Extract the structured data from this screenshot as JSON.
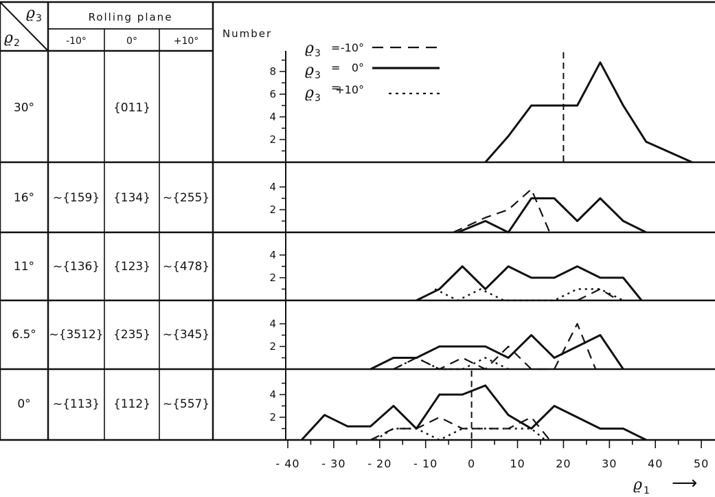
{
  "table": {
    "corner_top": "ϱ",
    "corner_top_sub": "3",
    "corner_bottom": "ϱ",
    "corner_bottom_sub": "2",
    "rolling_plane_header": "Rolling plane",
    "columns": [
      "-10°",
      "0°",
      "+10°"
    ],
    "number_header": "Number",
    "rows": [
      {
        "rho2": "30°",
        "planes": [
          "",
          "{011}",
          ""
        ]
      },
      {
        "rho2": "16°",
        "planes": [
          "~{159}",
          "{134}",
          "~{255}"
        ]
      },
      {
        "rho2": "11°",
        "planes": [
          "~{136}",
          "{123}",
          "~{478}"
        ]
      },
      {
        "rho2": "6.5°",
        "planes": [
          "~{3512}",
          "{235}",
          "~{345}"
        ]
      },
      {
        "rho2": "0°",
        "planes": [
          "~{113}",
          "{112}",
          "~{557}"
        ]
      }
    ]
  },
  "legend": [
    {
      "symbol": "ϱ",
      "sub": "3",
      "eq": "=",
      "value": "-10°",
      "style": "dashed"
    },
    {
      "symbol": "ϱ",
      "sub": "3",
      "eq": "=",
      "value": "0°",
      "style": "solid"
    },
    {
      "symbol": "ϱ",
      "sub": "3",
      "eq": "=",
      "value": "+10°",
      "style": "dotted"
    }
  ],
  "xaxis": {
    "label": "ϱ",
    "label_sub": "1",
    "arrow": "⟶",
    "tick_labels": [
      "- 40",
      "- 30",
      "- 20",
      "- 10",
      "0",
      "10",
      "20",
      "30",
      "40",
      "50"
    ]
  },
  "chart_data": {
    "type": "line",
    "x_range": [
      -40,
      50
    ],
    "panels": [
      {
        "rho2": "30°",
        "y_range": [
          0,
          10
        ],
        "y_ticks": [
          2,
          4,
          6,
          8
        ],
        "y_tick_labels": [
          "2",
          "4",
          "6",
          "8"
        ],
        "vertical_marker": {
          "x": 20,
          "style": "dashed"
        },
        "series": [
          {
            "rho3": "0°",
            "style": "solid",
            "points": [
              [
                3,
                0
              ],
              [
                8,
                2.3
              ],
              [
                13,
                5
              ],
              [
                18,
                5
              ],
              [
                23,
                5
              ],
              [
                28,
                8.8
              ],
              [
                33,
                5
              ],
              [
                38,
                1.8
              ],
              [
                48,
                0
              ]
            ]
          }
        ]
      },
      {
        "rho2": "16°",
        "y_range": [
          0,
          5
        ],
        "y_ticks": [
          2,
          4
        ],
        "y_tick_labels": [
          "2",
          "4"
        ],
        "series": [
          {
            "rho3": "-10°",
            "style": "dashed",
            "points": [
              [
                -4,
                0
              ],
              [
                3,
                1.3
              ],
              [
                8,
                2
              ],
              [
                13,
                3.8
              ],
              [
                17,
                0
              ]
            ]
          },
          {
            "rho3": "0°",
            "style": "solid",
            "points": [
              [
                -3,
                0
              ],
              [
                3,
                1
              ],
              [
                8,
                0
              ],
              [
                13,
                3
              ],
              [
                18,
                3
              ],
              [
                23,
                1
              ],
              [
                28,
                3
              ],
              [
                33,
                1
              ],
              [
                38,
                0
              ]
            ]
          }
        ]
      },
      {
        "rho2": "11°",
        "y_range": [
          0,
          5
        ],
        "y_ticks": [
          2,
          4
        ],
        "y_tick_labels": [
          "2",
          "4"
        ],
        "series": [
          {
            "rho3": "0°",
            "style": "solid",
            "points": [
              [
                -12,
                0
              ],
              [
                -7,
                1
              ],
              [
                -2,
                3
              ],
              [
                3,
                1
              ],
              [
                8,
                3
              ],
              [
                13,
                2
              ],
              [
                18,
                2
              ],
              [
                23,
                3
              ],
              [
                28,
                2
              ],
              [
                33,
                2
              ],
              [
                37,
                0
              ]
            ]
          },
          {
            "rho3": "+10°",
            "style": "dotted",
            "points": [
              [
                -8,
                1
              ],
              [
                -3,
                0
              ],
              [
                2,
                1
              ],
              [
                7,
                0
              ],
              [
                18,
                0
              ],
              [
                23,
                1
              ],
              [
                28,
                1
              ],
              [
                33,
                0
              ]
            ]
          },
          {
            "rho3": "-10°",
            "style": "dashed",
            "points": [
              [
                23,
                0
              ],
              [
                28,
                1
              ],
              [
                32,
                0
              ]
            ]
          }
        ]
      },
      {
        "rho2": "6.5°",
        "y_range": [
          0,
          5
        ],
        "y_ticks": [
          2,
          4
        ],
        "y_tick_labels": [
          "2",
          "4"
        ],
        "series": [
          {
            "rho3": "0°",
            "style": "solid",
            "points": [
              [
                -22,
                0
              ],
              [
                -17,
                1
              ],
              [
                -12,
                1
              ],
              [
                -7,
                2
              ],
              [
                -2,
                2
              ],
              [
                3,
                2
              ],
              [
                8,
                1
              ],
              [
                13,
                3
              ],
              [
                18,
                1
              ],
              [
                23,
                2
              ],
              [
                28,
                3
              ],
              [
                33,
                0
              ]
            ]
          },
          {
            "rho3": "-10°",
            "style": "dashed",
            "points": [
              [
                -17,
                0
              ],
              [
                -12,
                1
              ],
              [
                -7,
                0
              ],
              [
                -2,
                1
              ],
              [
                3,
                0
              ],
              [
                8,
                2
              ],
              [
                13,
                0
              ],
              [
                18,
                0
              ],
              [
                23,
                4
              ],
              [
                27,
                0
              ]
            ]
          },
          {
            "rho3": "+10°",
            "style": "dotted",
            "points": [
              [
                -17,
                0
              ],
              [
                -12,
                1
              ],
              [
                -7,
                0
              ],
              [
                -2,
                0
              ],
              [
                3,
                1
              ],
              [
                8,
                0
              ]
            ]
          }
        ]
      },
      {
        "rho2": "0°",
        "y_range": [
          0,
          5.5
        ],
        "y_ticks": [
          2,
          4
        ],
        "y_tick_labels": [
          "2",
          "4"
        ],
        "vertical_marker": {
          "x": 0,
          "style": "dashed"
        },
        "series": [
          {
            "rho3": "0°",
            "style": "solid",
            "points": [
              [
                -37,
                0
              ],
              [
                -32,
                2.2
              ],
              [
                -27,
                1.2
              ],
              [
                -22,
                1.2
              ],
              [
                -17,
                3
              ],
              [
                -12,
                1
              ],
              [
                -7,
                4
              ],
              [
                -2,
                4
              ],
              [
                3,
                4.8
              ],
              [
                8,
                2.2
              ],
              [
                13,
                1
              ],
              [
                18,
                3
              ],
              [
                23,
                2
              ],
              [
                28,
                1
              ],
              [
                33,
                1
              ],
              [
                38,
                0
              ]
            ]
          },
          {
            "rho3": "-10°",
            "style": "dashed",
            "points": [
              [
                -22,
                0
              ],
              [
                -17,
                1
              ],
              [
                -12,
                1
              ],
              [
                -7,
                2
              ],
              [
                -2,
                1
              ],
              [
                3,
                1
              ],
              [
                8,
                1
              ],
              [
                13,
                2
              ],
              [
                17,
                0
              ]
            ]
          },
          {
            "rho3": "+10°",
            "style": "dotted",
            "points": [
              [
                -21,
                0
              ],
              [
                -17,
                1
              ],
              [
                -12,
                1
              ],
              [
                -7,
                0
              ],
              [
                -2,
                1
              ],
              [
                3,
                1
              ],
              [
                8,
                1
              ],
              [
                13,
                1
              ],
              [
                16,
                0
              ]
            ]
          }
        ]
      }
    ]
  }
}
